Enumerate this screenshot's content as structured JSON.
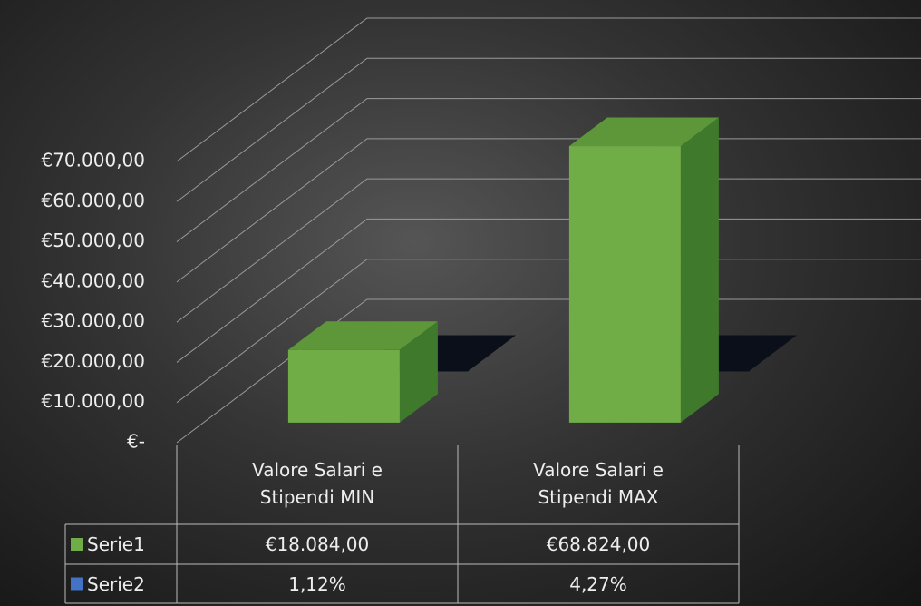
{
  "chart_data": {
    "type": "bar3d",
    "categories": [
      "Valore Salari e Stipendi MIN",
      "Valore Salari e Stipendi MAX"
    ],
    "series": [
      {
        "name": "Serie1",
        "color": "#70ad47",
        "values": [
          18084,
          68824
        ],
        "value_labels": [
          "€18.084,00",
          "€68.824,00"
        ]
      },
      {
        "name": "Serie2",
        "color": "#4472c4",
        "values": [
          1.12,
          4.27
        ],
        "value_labels": [
          "1,12%",
          "4,27%"
        ]
      }
    ],
    "ylim": [
      0,
      70000
    ],
    "yticks": [
      {
        "value": 0,
        "label": "€-"
      },
      {
        "value": 10000,
        "label": "€10.000,00"
      },
      {
        "value": 20000,
        "label": "€20.000,00"
      },
      {
        "value": 30000,
        "label": "€30.000,00"
      },
      {
        "value": 40000,
        "label": "€40.000,00"
      },
      {
        "value": 50000,
        "label": "€50.000,00"
      },
      {
        "value": 60000,
        "label": "€60.000,00"
      },
      {
        "value": 70000,
        "label": "€70.000,00"
      }
    ],
    "grid": true,
    "data_table": true
  }
}
